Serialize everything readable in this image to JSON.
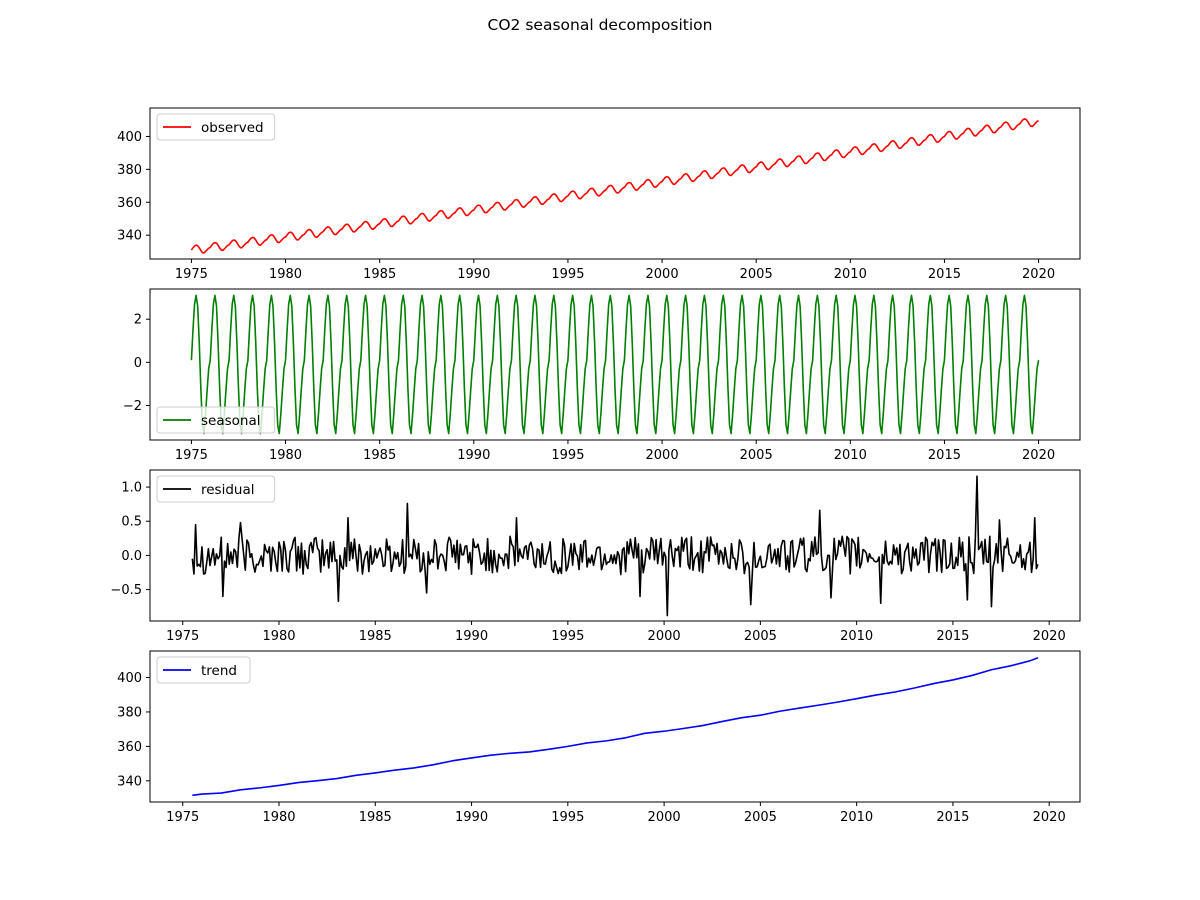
{
  "figure": {
    "title": "CO2 seasonal decomposition"
  },
  "colors": {
    "observed": "#ff0000",
    "seasonal": "#008000",
    "residual": "#000000",
    "trend": "#0000ff"
  },
  "chart_data": [
    {
      "type": "line",
      "series": [
        {
          "name": "observed"
        }
      ],
      "start_year": 1975.0,
      "step": 0.0833333,
      "base_start": 330.9,
      "base_end": 409.5,
      "base_curve": 0.12,
      "seasonal_amp": 2.6,
      "xlim": [
        1972.8,
        2022.2
      ],
      "xticks": [
        1975,
        1980,
        1985,
        1990,
        1995,
        2000,
        2005,
        2010,
        2015,
        2020
      ],
      "ylim": [
        325.5,
        417.3
      ],
      "yticks": [
        340,
        360,
        380,
        400
      ],
      "legend": "upper left"
    },
    {
      "type": "line",
      "series": [
        {
          "name": "seasonal",
          "values": [
            0.1,
            1.5,
            2.7,
            3.1,
            2.6,
            0.9,
            -1.2,
            -2.9,
            -3.3,
            -2.4,
            -1.3,
            -0.3
          ]
        }
      ],
      "start_year": 1975.0,
      "end_year": 2020.0,
      "step": 0.0833333,
      "xlim": [
        1972.8,
        2022.2
      ],
      "xticks": [
        1975,
        1980,
        1985,
        1990,
        1995,
        2000,
        2005,
        2010,
        2015,
        2020
      ],
      "ylim": [
        -3.6,
        3.4
      ],
      "yticks": [
        -2,
        0,
        2
      ],
      "legend": "lower left"
    },
    {
      "type": "line",
      "series": [
        {
          "name": "residual"
        }
      ],
      "start_year": 1975.5,
      "end_year": 2019.42,
      "step": 0.0833333,
      "noise_amp": 0.2,
      "spikes": [
        {
          "x": 1975.67,
          "y": 0.45
        },
        {
          "x": 1977.08,
          "y": -0.6
        },
        {
          "x": 1978.0,
          "y": 0.48
        },
        {
          "x": 1983.08,
          "y": -0.67
        },
        {
          "x": 1983.58,
          "y": 0.55
        },
        {
          "x": 1986.67,
          "y": 0.76
        },
        {
          "x": 1987.67,
          "y": -0.55
        },
        {
          "x": 1992.33,
          "y": 0.55
        },
        {
          "x": 1998.75,
          "y": -0.6
        },
        {
          "x": 2000.17,
          "y": -0.88
        },
        {
          "x": 2004.5,
          "y": -0.72
        },
        {
          "x": 2008.08,
          "y": 0.66
        },
        {
          "x": 2008.67,
          "y": -0.62
        },
        {
          "x": 2011.25,
          "y": -0.7
        },
        {
          "x": 2016.25,
          "y": 1.16
        },
        {
          "x": 2015.75,
          "y": -0.65
        },
        {
          "x": 2017.0,
          "y": -0.75
        },
        {
          "x": 2017.42,
          "y": 0.52
        },
        {
          "x": 2019.25,
          "y": 0.55
        }
      ],
      "xlim": [
        1973.3,
        2021.6
      ],
      "xticks": [
        1975,
        1980,
        1985,
        1990,
        1995,
        2000,
        2005,
        2010,
        2015,
        2020
      ],
      "ylim": [
        -0.96,
        1.25
      ],
      "yticks": [
        -0.5,
        0.0,
        0.5,
        1.0
      ],
      "legend": "upper left"
    },
    {
      "type": "line",
      "series": [
        {
          "name": "trend",
          "x": [
            1975.5,
            1976,
            1977,
            1978,
            1979,
            1980,
            1981,
            1982,
            1983,
            1984,
            1985,
            1986,
            1987,
            1988,
            1989,
            1990,
            1991,
            1992,
            1993,
            1994,
            1995,
            1996,
            1997,
            1998,
            1999,
            2000,
            2001,
            2002,
            2003,
            2004,
            2005,
            2006,
            2007,
            2008,
            2009,
            2010,
            2011,
            2012,
            2013,
            2014,
            2015,
            2016,
            2017,
            2018,
            2019,
            2019.42
          ],
          "values": [
            331.6,
            332.3,
            332.9,
            334.8,
            335.9,
            337.3,
            339.0,
            340.1,
            341.3,
            343.2,
            344.6,
            346.2,
            347.5,
            349.3,
            351.6,
            353.3,
            354.9,
            356.0,
            356.8,
            358.3,
            360.0,
            362.0,
            363.2,
            365.0,
            367.6,
            368.8,
            370.4,
            372.1,
            374.4,
            376.6,
            378.1,
            380.4,
            382.2,
            383.9,
            385.7,
            387.7,
            389.8,
            391.6,
            393.9,
            396.5,
            398.6,
            401.2,
            404.5,
            406.8,
            409.7,
            411.5
          ]
        }
      ],
      "xlim": [
        1973.3,
        2021.6
      ],
      "xticks": [
        1975,
        1980,
        1985,
        1990,
        1995,
        2000,
        2005,
        2010,
        2015,
        2020
      ],
      "ylim": [
        327.7,
        415.4
      ],
      "yticks": [
        340,
        360,
        380,
        400
      ],
      "legend": "upper left"
    }
  ]
}
